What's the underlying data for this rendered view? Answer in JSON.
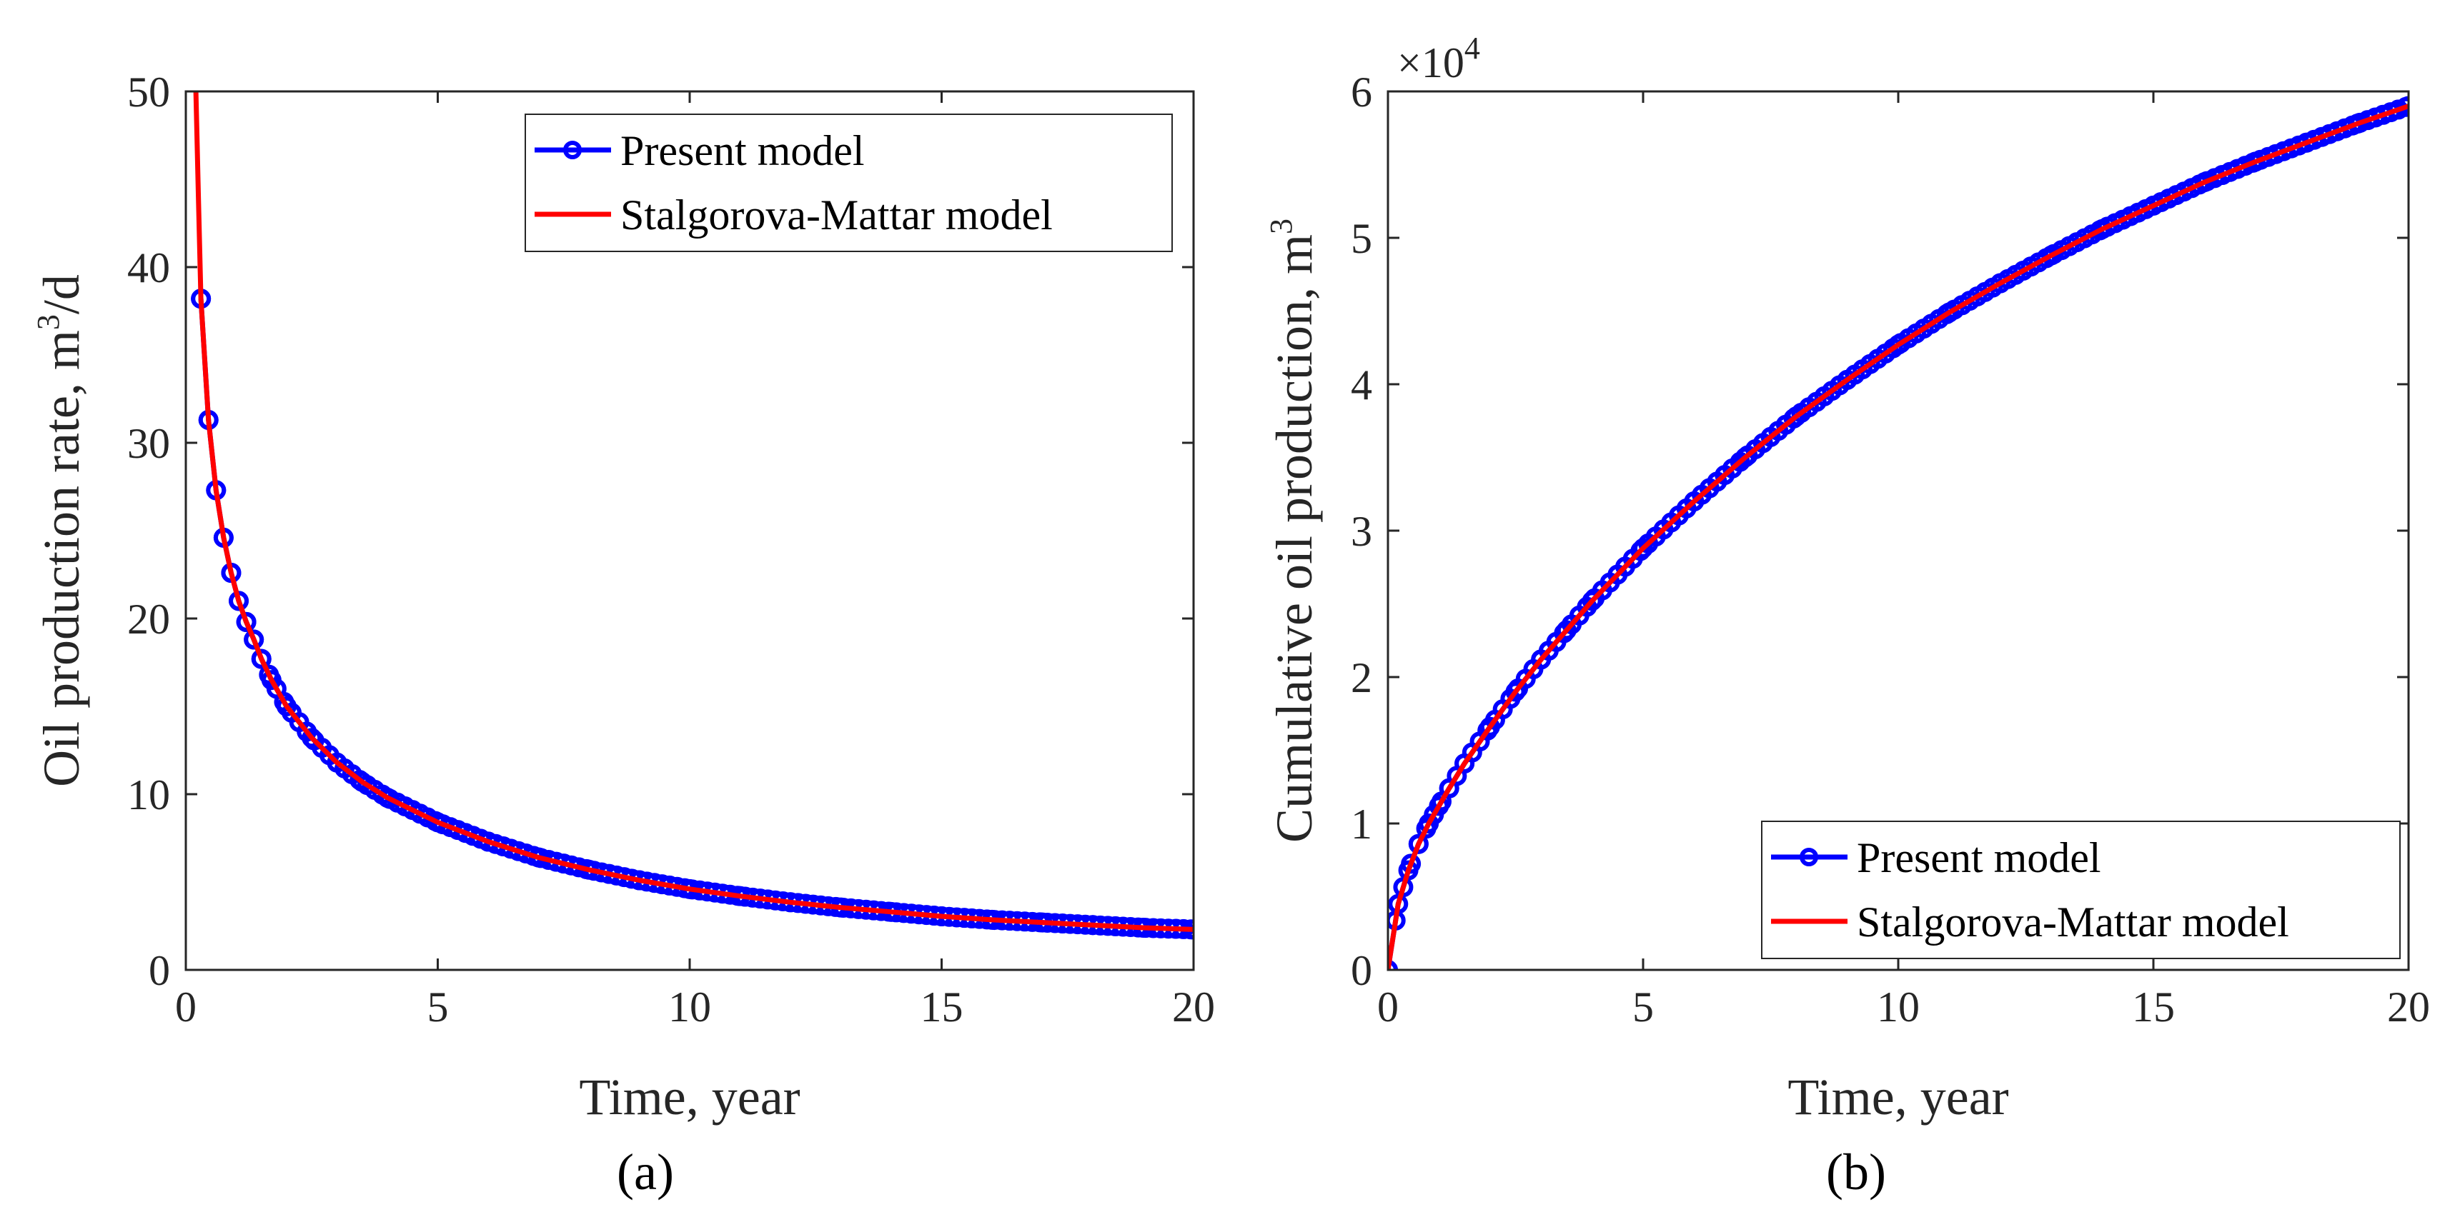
{
  "chart_data": [
    {
      "type": "line",
      "panel_label": "(a)",
      "xlabel": "Time, year",
      "ylabel_main": "Oil production rate, m",
      "ylabel_sup": "3",
      "ylabel_tail": "/d",
      "xlim": [
        0,
        20
      ],
      "ylim": [
        0,
        50
      ],
      "xticks": [
        0,
        5,
        10,
        15,
        20
      ],
      "yticks": [
        0,
        10,
        20,
        30,
        40,
        50
      ],
      "legend_position": "top-right",
      "series": [
        {
          "name": "Present model",
          "color": "#0000ff",
          "marker": "circle",
          "x": [
            0.3,
            0.45,
            0.6,
            0.75,
            0.9,
            1.05,
            1.2,
            1.35,
            1.5,
            1.7,
            2,
            2.5,
            3,
            3.5,
            4,
            5,
            6,
            7,
            8,
            9,
            10,
            11,
            12,
            13,
            14,
            15,
            16,
            17,
            18,
            19,
            20
          ],
          "y": [
            38.2,
            31.3,
            27.3,
            24.6,
            22.6,
            21.0,
            19.8,
            18.8,
            17.7,
            16.5,
            15.0,
            13.2,
            11.8,
            10.7,
            9.8,
            8.4,
            7.3,
            6.4,
            5.7,
            5.1,
            4.6,
            4.2,
            3.85,
            3.55,
            3.3,
            3.05,
            2.85,
            2.7,
            2.55,
            2.4,
            2.3
          ]
        },
        {
          "name": "Stalgorova-Mattar model",
          "color": "#ff0000",
          "marker": "none",
          "x": [
            0.2,
            0.25,
            0.3,
            0.45,
            0.6,
            0.75,
            0.9,
            1.05,
            1.2,
            1.35,
            1.5,
            1.7,
            2,
            2.5,
            3,
            3.5,
            4,
            5,
            6,
            7,
            8,
            9,
            10,
            11,
            12,
            13,
            14,
            15,
            16,
            17,
            18,
            19,
            20
          ],
          "y": [
            50,
            44,
            38.2,
            31.3,
            27.3,
            24.6,
            22.6,
            21.0,
            19.8,
            18.8,
            17.7,
            16.5,
            15.0,
            13.2,
            11.8,
            10.7,
            9.8,
            8.4,
            7.3,
            6.4,
            5.7,
            5.1,
            4.6,
            4.2,
            3.85,
            3.55,
            3.3,
            3.05,
            2.85,
            2.7,
            2.55,
            2.4,
            2.3
          ]
        }
      ]
    },
    {
      "type": "line",
      "panel_label": "(b)",
      "xlabel": "Time, year",
      "ylabel_main": "Cumulative oil production, m",
      "ylabel_sup": "3",
      "ylabel_tail": "",
      "multiplier_base": "×10",
      "multiplier_exp": "4",
      "xlim": [
        0,
        20
      ],
      "ylim": [
        0,
        6
      ],
      "xticks": [
        0,
        5,
        10,
        15,
        20
      ],
      "yticks": [
        0,
        1,
        2,
        3,
        4,
        5,
        6
      ],
      "legend_position": "bottom-right",
      "series": [
        {
          "name": "Present model",
          "color": "#0000ff",
          "marker": "circle",
          "x": [
            0,
            0.2,
            0.4,
            0.6,
            0.8,
            1,
            1.2,
            1.5,
            2,
            2.5,
            3,
            3.5,
            4,
            5,
            6,
            7,
            8,
            9,
            10,
            11,
            12,
            13,
            14,
            15,
            16,
            17,
            18,
            19,
            20
          ],
          "y": [
            0,
            0.45,
            0.68,
            0.86,
            1.0,
            1.12,
            1.24,
            1.41,
            1.66,
            1.9,
            2.12,
            2.32,
            2.52,
            2.88,
            3.2,
            3.5,
            3.78,
            4.03,
            4.27,
            4.49,
            4.69,
            4.88,
            5.06,
            5.22,
            5.38,
            5.52,
            5.65,
            5.78,
            5.9
          ]
        },
        {
          "name": "Stalgorova-Mattar model",
          "color": "#ff0000",
          "marker": "none",
          "x": [
            0,
            0.2,
            0.4,
            0.6,
            0.8,
            1,
            1.2,
            1.5,
            2,
            2.5,
            3,
            3.5,
            4,
            5,
            6,
            7,
            8,
            9,
            10,
            11,
            12,
            13,
            14,
            15,
            16,
            17,
            18,
            19,
            20
          ],
          "y": [
            0,
            0.45,
            0.68,
            0.86,
            1.0,
            1.12,
            1.24,
            1.41,
            1.66,
            1.9,
            2.12,
            2.32,
            2.52,
            2.88,
            3.2,
            3.5,
            3.78,
            4.03,
            4.27,
            4.49,
            4.69,
            4.88,
            5.06,
            5.22,
            5.38,
            5.52,
            5.65,
            5.78,
            5.9
          ]
        }
      ]
    }
  ]
}
